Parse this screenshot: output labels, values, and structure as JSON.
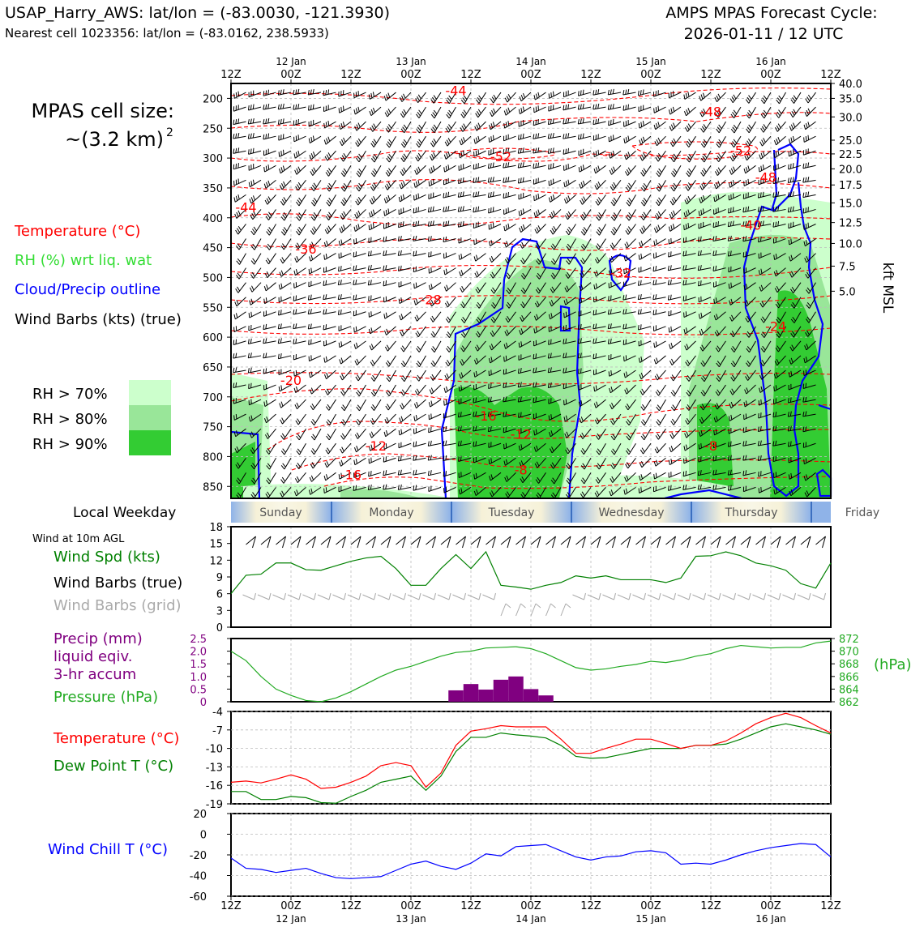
{
  "header": {
    "station_line": "USAP_Harry_AWS: lat/lon = (-83.0030, -121.3930)",
    "cell_line": "Nearest cell 1023356: lat/lon = (-83.0162, 238.5933)",
    "cycle_title": "AMPS MPAS Forecast Cycle:",
    "cycle_date": "2026-01-11 / 12 UTC"
  },
  "cell_size": {
    "line1": "MPAS cell size:",
    "line2": "~(3.2 km)",
    "sup": "2"
  },
  "legend": {
    "temperature": "Temperature (°C)",
    "rh": "RH (%) wrt liq. wat",
    "cloud": "Cloud/Precip outline",
    "barbs": "Wind Barbs (kts) (true)",
    "rh70": "RH > 70%",
    "rh80": "RH > 80%",
    "rh90": "RH > 90%"
  },
  "colors": {
    "temperature": "#ff0000",
    "dewpoint": "#008000",
    "rh_label": "#33dd33",
    "cloud": "#0000ff",
    "rh70": "#ccffcc",
    "rh80": "#99e699",
    "rh90": "#33cc33",
    "precip": "#800080",
    "pressure": "#22aa22",
    "grid_barbs": "#aaaaaa",
    "windchill": "#0000ff"
  },
  "time_axis": {
    "top_ticks": [
      {
        "t": 0,
        "hour": "12Z",
        "day": ""
      },
      {
        "t": 12,
        "hour": "00Z",
        "day": "12 Jan"
      },
      {
        "t": 24,
        "hour": "12Z",
        "day": ""
      },
      {
        "t": 36,
        "hour": "00Z",
        "day": "13 Jan"
      },
      {
        "t": 48,
        "hour": "12Z",
        "day": ""
      },
      {
        "t": 60,
        "hour": "00Z",
        "day": "14 Jan"
      },
      {
        "t": 72,
        "hour": "12Z",
        "day": ""
      },
      {
        "t": 84,
        "hour": "00Z",
        "day": "15 Jan"
      },
      {
        "t": 96,
        "hour": "12Z",
        "day": ""
      },
      {
        "t": 108,
        "hour": "00Z",
        "day": "16 Jan"
      },
      {
        "t": 120,
        "hour": "12Z",
        "day": ""
      }
    ],
    "range_hours": [
      0,
      120
    ]
  },
  "weekday": {
    "label": "Local Weekday",
    "days": [
      "Sunday",
      "Monday",
      "Tuesday",
      "Wednesday",
      "Thursday",
      "Friday"
    ]
  },
  "chart_data": [
    {
      "type": "heatmap",
      "subtype": "time-height cross section",
      "y_left_label": "",
      "y_right_label": "kft MSL",
      "pressure_ticks": [
        200,
        250,
        300,
        350,
        400,
        450,
        500,
        550,
        600,
        650,
        700,
        750,
        800,
        850
      ],
      "pressure_range": [
        175,
        870
      ],
      "height_ticks": [
        {
          "label": "40.0",
          "p": 175
        },
        {
          "label": "35.0",
          "p": 200
        },
        {
          "label": "30.0",
          "p": 231
        },
        {
          "label": "25.0",
          "p": 270
        },
        {
          "label": "22.5",
          "p": 293
        },
        {
          "label": "20.0",
          "p": 318
        },
        {
          "label": "17.5",
          "p": 345
        },
        {
          "label": "15.0",
          "p": 375
        },
        {
          "label": "12.5",
          "p": 408
        },
        {
          "label": "10.0",
          "p": 443
        },
        {
          "label": "7.5",
          "p": 481
        },
        {
          "label": "5.0",
          "p": 523
        }
      ],
      "temperature_contour_labels": [
        {
          "text": "-44",
          "t": 45,
          "p": 195
        },
        {
          "text": "-48",
          "t": 96,
          "p": 230
        },
        {
          "text": "-52",
          "t": 54,
          "p": 305
        },
        {
          "text": "-52",
          "t": 102,
          "p": 295
        },
        {
          "text": "-48",
          "t": 107,
          "p": 340
        },
        {
          "text": "-44",
          "t": 3,
          "p": 390
        },
        {
          "text": "-40",
          "t": 104,
          "p": 420
        },
        {
          "text": "-36",
          "t": 15,
          "p": 460
        },
        {
          "text": "-32",
          "t": 78,
          "p": 500
        },
        {
          "text": "-28",
          "t": 40,
          "p": 545
        },
        {
          "text": "-24",
          "t": 109,
          "p": 590
        },
        {
          "text": "-20",
          "t": 12,
          "p": 680
        },
        {
          "text": "-16",
          "t": 51,
          "p": 740
        },
        {
          "text": "-12",
          "t": 29,
          "p": 790
        },
        {
          "text": "-12",
          "t": 58,
          "p": 770
        },
        {
          "text": "-8",
          "t": 96,
          "p": 790
        },
        {
          "text": "-8",
          "t": 58,
          "p": 830
        },
        {
          "text": "-16",
          "t": 24,
          "p": 838
        }
      ]
    },
    {
      "type": "line",
      "title": "Wind at 10m AGL",
      "labels": [
        "Wind Spd (kts)",
        "Wind Barbs (true)",
        "Wind Barbs (grid)"
      ],
      "yticks": [
        0,
        3,
        6,
        9,
        12,
        15,
        18
      ],
      "ylim": [
        0,
        18
      ],
      "x": [
        0,
        3,
        6,
        9,
        12,
        15,
        18,
        21,
        24,
        27,
        30,
        33,
        36,
        39,
        42,
        45,
        48,
        51,
        54,
        57,
        60,
        63,
        66,
        69,
        72,
        75,
        78,
        81,
        84,
        87,
        90,
        93,
        96,
        99,
        102,
        105,
        108,
        111,
        114,
        117,
        120
      ],
      "series": [
        {
          "name": "Wind Spd (kts)",
          "values": [
            6.0,
            9.3,
            9.5,
            11.5,
            11.5,
            10.3,
            10.2,
            11.0,
            11.8,
            12.4,
            12.7,
            10.5,
            7.5,
            7.5,
            10.5,
            13.0,
            10.5,
            13.5,
            7.5,
            7.2,
            6.8,
            7.5,
            8.0,
            9.2,
            8.8,
            9.2,
            8.5,
            8.5,
            8.5,
            8.0,
            8.8,
            12.7,
            12.8,
            13.5,
            12.8,
            11.5,
            11.0,
            10.2,
            7.8,
            7.0,
            11.5
          ]
        }
      ]
    },
    {
      "type": "bar",
      "labels": [
        "Precip (mm)",
        "liquid eqiv.",
        "3-hr accum",
        "Pressure (hPa)"
      ],
      "ylim_left": [
        0,
        2.5
      ],
      "yticks_left": [
        "0",
        "0.5",
        "1.0",
        "1.5",
        "2.0",
        "2.5"
      ],
      "ylim_right": [
        862,
        872
      ],
      "yticks_right": [
        "862",
        "864",
        "866",
        "868",
        "870",
        "872"
      ],
      "right_unit": "(hPa)",
      "precip_x": [
        45,
        48,
        51,
        54,
        57,
        60,
        63
      ],
      "precip_values": [
        0.45,
        0.7,
        0.48,
        0.87,
        1.0,
        0.5,
        0.25
      ],
      "pressure_x": [
        0,
        3,
        6,
        9,
        12,
        15,
        18,
        21,
        24,
        27,
        30,
        33,
        36,
        39,
        42,
        45,
        48,
        51,
        54,
        57,
        60,
        63,
        66,
        69,
        72,
        75,
        78,
        81,
        84,
        87,
        90,
        93,
        96,
        99,
        102,
        105,
        108,
        111,
        114,
        117,
        120
      ],
      "pressure_values": [
        870.0,
        868.5,
        866.0,
        864.0,
        863.0,
        862.2,
        862.0,
        862.6,
        863.6,
        864.8,
        866.0,
        867.0,
        867.6,
        868.4,
        869.2,
        869.8,
        870.0,
        870.5,
        870.6,
        870.7,
        870.4,
        869.6,
        868.5,
        867.4,
        867.0,
        867.2,
        867.6,
        867.9,
        868.4,
        868.2,
        868.6,
        869.2,
        869.6,
        870.4,
        870.9,
        870.7,
        870.5,
        870.6,
        870.6,
        871.3,
        871.6
      ]
    },
    {
      "type": "line",
      "labels": [
        "Temperature (°C)",
        "Dew Point T (°C)"
      ],
      "yticks": [
        -19,
        -16,
        -13,
        -10,
        -7,
        -4
      ],
      "ylim": [
        -19,
        -4
      ],
      "x": [
        0,
        3,
        6,
        9,
        12,
        15,
        18,
        21,
        24,
        27,
        30,
        33,
        36,
        39,
        42,
        45,
        48,
        51,
        54,
        57,
        60,
        63,
        66,
        69,
        72,
        75,
        78,
        81,
        84,
        87,
        90,
        93,
        96,
        99,
        102,
        105,
        108,
        111,
        114,
        117,
        120
      ],
      "series": [
        {
          "name": "Temperature (°C)",
          "values": [
            -15.5,
            -15.3,
            -15.6,
            -15.0,
            -14.3,
            -15.0,
            -16.5,
            -16.3,
            -15.5,
            -14.5,
            -12.8,
            -12.3,
            -12.8,
            -16.3,
            -14.0,
            -9.5,
            -7.2,
            -6.8,
            -6.3,
            -6.5,
            -6.5,
            -6.5,
            -8.5,
            -10.8,
            -10.8,
            -10.0,
            -9.3,
            -8.5,
            -8.5,
            -9.2,
            -10.0,
            -9.5,
            -9.5,
            -8.8,
            -7.5,
            -6.0,
            -5.0,
            -4.3,
            -5.0,
            -6.3,
            -7.5
          ]
        },
        {
          "name": "Dew Point T (°C)",
          "values": [
            -17.0,
            -17.0,
            -18.3,
            -18.3,
            -17.8,
            -18.0,
            -18.8,
            -18.9,
            -17.8,
            -16.8,
            -15.5,
            -15.0,
            -14.5,
            -16.8,
            -14.5,
            -10.5,
            -8.2,
            -8.2,
            -7.5,
            -7.8,
            -8.0,
            -8.3,
            -9.5,
            -11.3,
            -11.6,
            -11.5,
            -11.0,
            -10.5,
            -10.0,
            -10.0,
            -10.0,
            -9.5,
            -9.5,
            -9.3,
            -8.5,
            -7.5,
            -6.5,
            -6.0,
            -6.5,
            -7.0,
            -7.7
          ]
        }
      ]
    },
    {
      "type": "line",
      "labels": [
        "Wind Chill T (°C)"
      ],
      "yticks": [
        -60,
        -40,
        -20,
        0,
        20
      ],
      "ylim": [
        -60,
        20
      ],
      "x": [
        0,
        3,
        6,
        9,
        12,
        15,
        18,
        21,
        24,
        27,
        30,
        33,
        36,
        39,
        42,
        45,
        48,
        51,
        54,
        57,
        60,
        63,
        66,
        69,
        72,
        75,
        78,
        81,
        84,
        87,
        90,
        93,
        96,
        99,
        102,
        105,
        108,
        111,
        114,
        117,
        120
      ],
      "series": [
        {
          "name": "Wind Chill T (°C)",
          "values": [
            -23,
            -33,
            -34,
            -37,
            -35,
            -33,
            -38,
            -42,
            -43,
            -42,
            -41,
            -35,
            -29,
            -26,
            -31,
            -34,
            -28,
            -19,
            -21,
            -12,
            -11,
            -10,
            -16,
            -22,
            -25,
            -22,
            -21,
            -17,
            -16,
            -18,
            -29,
            -28,
            -29,
            -25,
            -20,
            -16,
            -13,
            -11,
            -9,
            -10,
            -22
          ]
        }
      ]
    }
  ],
  "bottom_axis": {
    "ticks": [
      {
        "t": 0,
        "hour": "12Z",
        "day": ""
      },
      {
        "t": 12,
        "hour": "00Z",
        "day": "12 Jan"
      },
      {
        "t": 24,
        "hour": "12Z",
        "day": ""
      },
      {
        "t": 36,
        "hour": "00Z",
        "day": "13 Jan"
      },
      {
        "t": 48,
        "hour": "12Z",
        "day": ""
      },
      {
        "t": 60,
        "hour": "00Z",
        "day": "14 Jan"
      },
      {
        "t": 72,
        "hour": "12Z",
        "day": ""
      },
      {
        "t": 84,
        "hour": "00Z",
        "day": "15 Jan"
      },
      {
        "t": 96,
        "hour": "12Z",
        "day": ""
      },
      {
        "t": 108,
        "hour": "00Z",
        "day": "16 Jan"
      },
      {
        "t": 120,
        "hour": "12Z",
        "day": ""
      }
    ]
  }
}
